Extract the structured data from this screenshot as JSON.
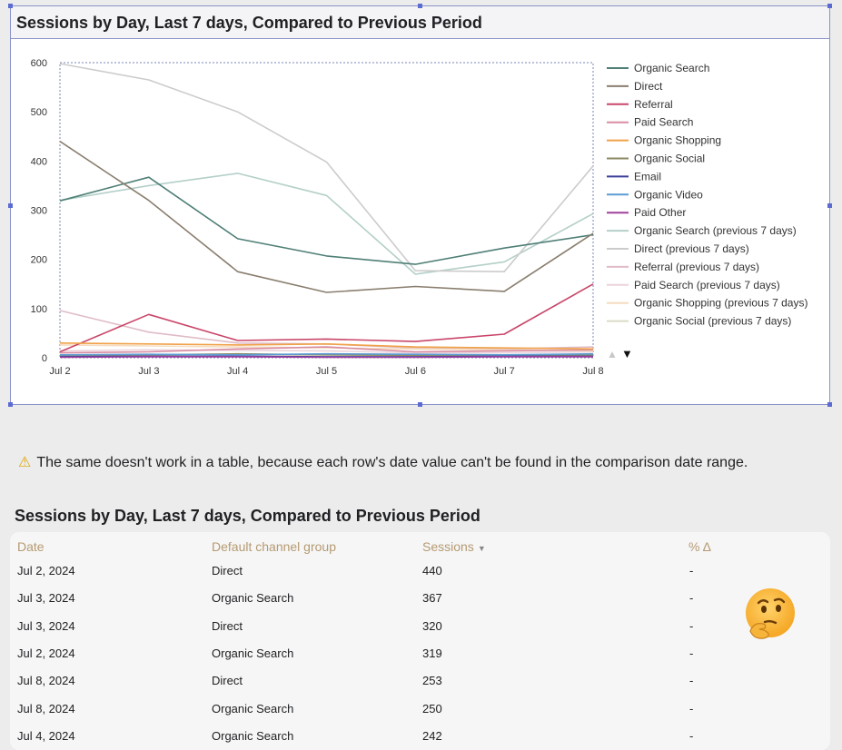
{
  "chart_card": {
    "title": "Sessions by Day, Last 7 days, Compared to Previous Period"
  },
  "chart_data": {
    "type": "line",
    "title": "Sessions by Day, Last 7 days, Compared to Previous Period",
    "xlabel": "",
    "ylabel": "",
    "categories": [
      "Jul 2",
      "Jul 3",
      "Jul 4",
      "Jul 5",
      "Jul 6",
      "Jul 7",
      "Jul 8"
    ],
    "ylim": [
      0,
      600
    ],
    "yticks": [
      0,
      100,
      200,
      300,
      400,
      500,
      600
    ],
    "grid": false,
    "legend_position": "right",
    "series": [
      {
        "name": "Organic Search",
        "color": "#4f7f76",
        "values": [
          319,
          367,
          242,
          207,
          190,
          223,
          250
        ]
      },
      {
        "name": "Direct",
        "color": "#8a7e6e",
        "values": [
          440,
          320,
          175,
          133,
          145,
          135,
          253
        ]
      },
      {
        "name": "Referral",
        "color": "#c9466a",
        "values": [
          12,
          88,
          35,
          38,
          33,
          48,
          150
        ]
      },
      {
        "name": "Paid Search",
        "color": "#d98ca2",
        "values": [
          10,
          12,
          18,
          22,
          12,
          14,
          16
        ]
      },
      {
        "name": "Organic Shopping",
        "color": "#f0a24a",
        "values": [
          30,
          28,
          26,
          28,
          22,
          20,
          18
        ]
      },
      {
        "name": "Organic Social",
        "color": "#8c8a63",
        "values": [
          4,
          6,
          8,
          6,
          5,
          5,
          6
        ]
      },
      {
        "name": "Email",
        "color": "#3b3f9a",
        "values": [
          2,
          3,
          3,
          2,
          2,
          3,
          3
        ]
      },
      {
        "name": "Organic Video",
        "color": "#5c9bd6",
        "values": [
          6,
          7,
          6,
          8,
          7,
          6,
          8
        ]
      },
      {
        "name": "Paid Other",
        "color": "#a23f9e",
        "values": [
          1,
          2,
          2,
          1,
          1,
          2,
          2
        ]
      },
      {
        "name": "Organic Search (previous 7 days)",
        "color": "#b4cfc9",
        "values": [
          320,
          350,
          375,
          330,
          170,
          195,
          293
        ]
      },
      {
        "name": "Direct (previous 7 days)",
        "color": "#cccccc",
        "values": [
          598,
          565,
          500,
          398,
          177,
          175,
          390
        ]
      },
      {
        "name": "Referral (previous 7 days)",
        "color": "#e0bcc6",
        "values": [
          96,
          52,
          30,
          28,
          20,
          18,
          22
        ]
      },
      {
        "name": "Paid Search (previous 7 days)",
        "color": "#ecd4dc",
        "values": [
          14,
          16,
          15,
          14,
          10,
          10,
          12
        ]
      },
      {
        "name": "Organic Shopping (previous 7 days)",
        "color": "#f5dcc0",
        "values": [
          26,
          24,
          22,
          20,
          18,
          16,
          14
        ]
      },
      {
        "name": "Organic Social (previous 7 days)",
        "color": "#dcdbc6",
        "values": [
          5,
          6,
          5,
          6,
          5,
          4,
          5
        ]
      }
    ]
  },
  "pager": {
    "up_arrow": "▲",
    "down_arrow": "▼"
  },
  "note": {
    "icon": "⚠",
    "text": "The same doesn't work in a table, because each row's date value can't be found in the comparison date range."
  },
  "table": {
    "title": "Sessions by Day, Last 7 days, Compared to Previous Period",
    "headers": [
      "Date",
      "Default channel group",
      "Sessions",
      "% Δ"
    ],
    "sort_indicator": "▼",
    "rows": [
      {
        "date": "Jul 2, 2024",
        "channel": "Direct",
        "sessions": "440",
        "delta": "-"
      },
      {
        "date": "Jul 3, 2024",
        "channel": "Organic Search",
        "sessions": "367",
        "delta": "-"
      },
      {
        "date": "Jul 3, 2024",
        "channel": "Direct",
        "sessions": "320",
        "delta": "-"
      },
      {
        "date": "Jul 2, 2024",
        "channel": "Organic Search",
        "sessions": "319",
        "delta": "-"
      },
      {
        "date": "Jul 8, 2024",
        "channel": "Direct",
        "sessions": "253",
        "delta": "-"
      },
      {
        "date": "Jul 8, 2024",
        "channel": "Organic Search",
        "sessions": "250",
        "delta": "-"
      },
      {
        "date": "Jul 4, 2024",
        "channel": "Organic Search",
        "sessions": "242",
        "delta": "-"
      }
    ]
  },
  "emoji": {
    "name": "thinking-face-icon"
  }
}
